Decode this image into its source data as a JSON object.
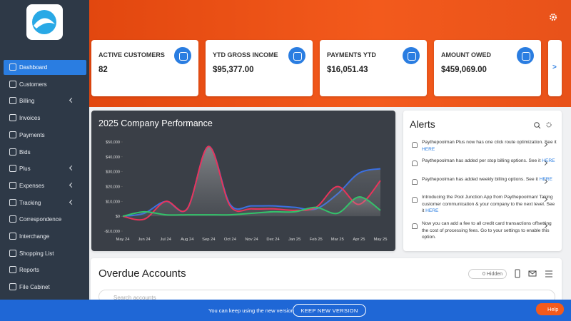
{
  "sidebar": {
    "menu": [
      "Dashboard",
      "Customers",
      "Billing",
      "Invoices",
      "Payments",
      "Bids",
      "Plus",
      "Expenses",
      "Tracking",
      "Correspondence",
      "Interchange",
      "Shopping List",
      "Reports",
      "File Cabinet"
    ]
  },
  "cards": [
    {
      "title": "ACTIVE CUSTOMERS",
      "value": "82"
    },
    {
      "title": "YTD GROSS INCOME",
      "value": "$95,377.00"
    },
    {
      "title": "PAYMENTS YTD",
      "value": "$16,051.43"
    },
    {
      "title": "AMOUNT OWED",
      "value": "$459,069.00"
    }
  ],
  "chart_data": {
    "type": "line",
    "title": "2025 Company Performance",
    "categories": [
      "May 24",
      "Jun 24",
      "Jul 24",
      "Aug 24",
      "Sep 24",
      "Oct 24",
      "Nov 24",
      "Dec 24",
      "Jan 25",
      "Feb 25",
      "Mar 25",
      "Apr 25",
      "May 25"
    ],
    "series": [
      {
        "color": "#3b6fe0",
        "values": [
          0,
          2000,
          10000,
          5000,
          47000,
          8000,
          7000,
          7000,
          6000,
          5000,
          15000,
          29000,
          32000
        ]
      },
      {
        "color": "#e8345a",
        "values": [
          0,
          -2000,
          10000,
          5000,
          47000,
          7000,
          5000,
          5000,
          4000,
          6000,
          20000,
          8000,
          24000
        ]
      },
      {
        "color": "#33c26a",
        "values": [
          0,
          3000,
          1000,
          1000,
          1000,
          1000,
          2000,
          3000,
          3000,
          6000,
          2000,
          13000,
          4000
        ]
      }
    ],
    "ylim": [
      -10000,
      50000
    ],
    "yticks": [
      {
        "value": -10000,
        "label": "-$10,000"
      },
      {
        "value": 0,
        "label": "$0"
      },
      {
        "value": 10000,
        "label": "$10,000"
      },
      {
        "value": 20000,
        "label": "$20,000"
      },
      {
        "value": 30000,
        "label": "$30,000"
      },
      {
        "value": 40000,
        "label": "$40,000"
      },
      {
        "value": 50000,
        "label": "$50,000"
      }
    ]
  },
  "alerts": {
    "title": "Alerts",
    "items": [
      {
        "text": "Paythepoolman Plus now has one click route optimization. See it",
        "link": "HERE"
      },
      {
        "text": "Paythepoolman has added per stop billing options. See it",
        "link": "HERE"
      },
      {
        "text": "Paythepoolman has added weekly billing options. See it",
        "link": "HERE"
      },
      {
        "text": "Introducing the Pool Junction App from Paythepoolman! Taking customer communication & your company to the next level. See it",
        "link": "HERE"
      },
      {
        "text": "Now you can add a fee to all credit card transactions offsetting the cost of processing fees. Go to your settings to enable this option."
      }
    ]
  },
  "overdue": {
    "title": "Overdue Accounts",
    "hidden": "0 Hidden",
    "search": "Search accounts"
  },
  "banner": {
    "text": "You can keep using the new version",
    "button": "KEEP NEW VERSION",
    "help": "Help"
  }
}
